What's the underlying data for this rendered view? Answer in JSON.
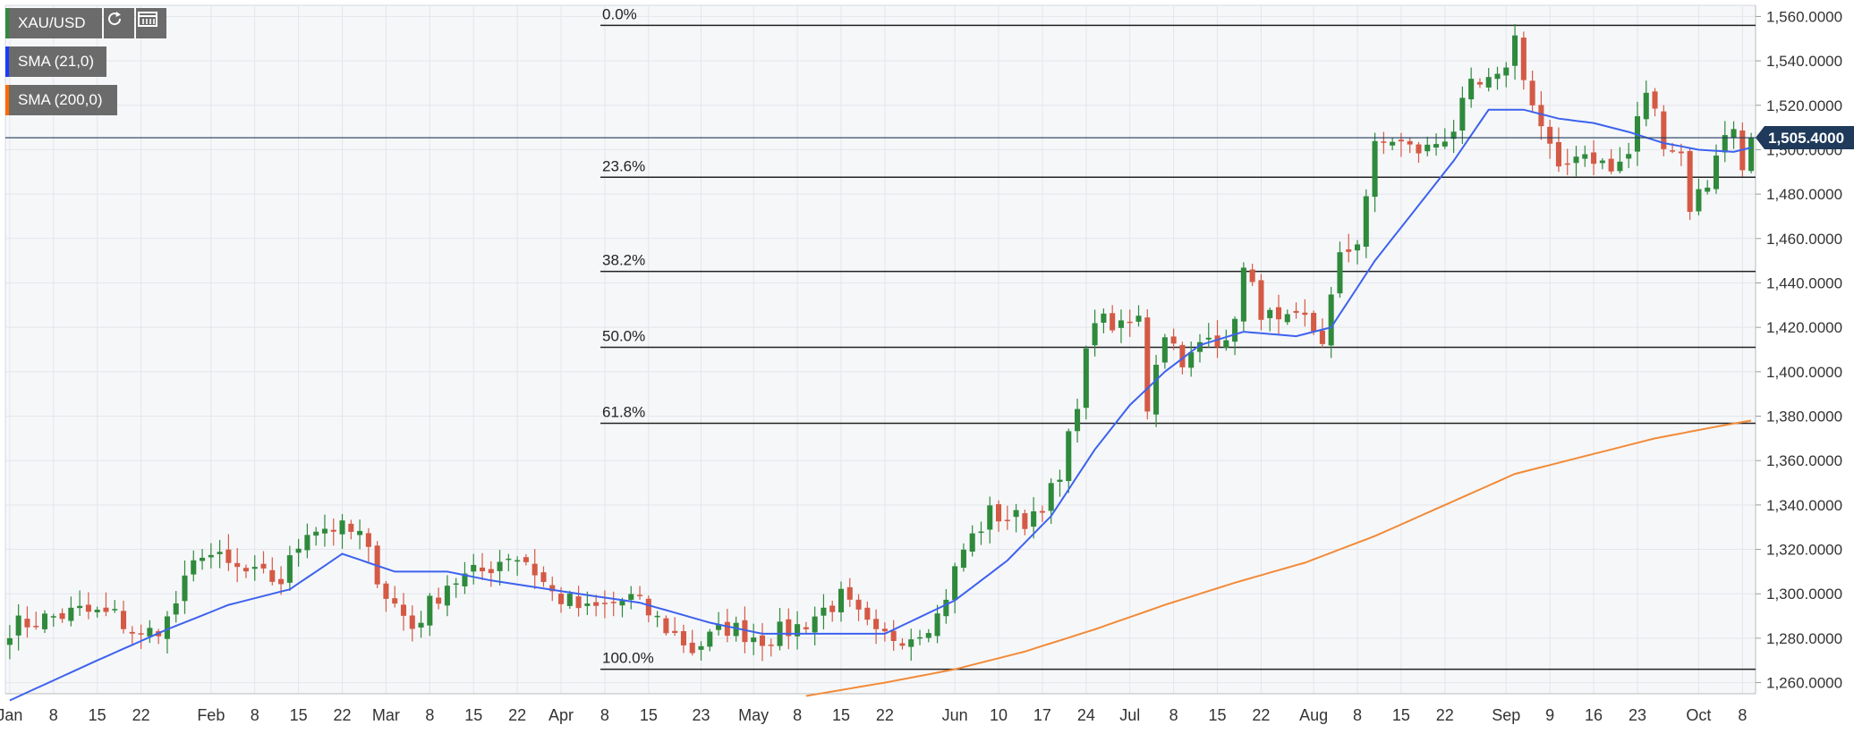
{
  "symbol": "XAU/USD",
  "indicators": [
    {
      "label": "SMA (21,0)",
      "color": "#1a3cff"
    },
    {
      "label": "SMA (200,0)",
      "color": "#ff6a00"
    }
  ],
  "toolbar_icons": [
    "refresh-icon",
    "calendar-range-icon"
  ],
  "colors": {
    "up": "#2f8a3c",
    "down": "#d45a45",
    "sma21": "#3d62ee",
    "sma200": "#f28a37",
    "grid": "#e4e6ec",
    "fib": "#222222",
    "price_tag": "#1f3a5a"
  },
  "chart_data": {
    "type": "candlestick",
    "title": "",
    "ylim": [
      1255,
      1565
    ],
    "y_ticks": [
      "1,260.0000",
      "1,280.0000",
      "1,300.0000",
      "1,320.0000",
      "1,340.0000",
      "1,360.0000",
      "1,380.0000",
      "1,400.0000",
      "1,420.0000",
      "1,440.0000",
      "1,460.0000",
      "1,480.0000",
      "1,500.0000",
      "1,520.0000",
      "1,540.0000",
      "1,560.0000"
    ],
    "x_ticks": [
      "Jan",
      "8",
      "15",
      "22",
      "Feb",
      "8",
      "15",
      "22",
      "Mar",
      "8",
      "15",
      "22",
      "Apr",
      "8",
      "15",
      "23",
      "May",
      "8",
      "15",
      "22",
      "Jun",
      "10",
      "17",
      "24",
      "Jul",
      "8",
      "15",
      "22",
      "Aug",
      "8",
      "15",
      "22",
      "Sep",
      "9",
      "16",
      "23",
      "Oct",
      "8"
    ],
    "x_tick_index": [
      0,
      5,
      10,
      15,
      23,
      28,
      33,
      38,
      43,
      48,
      53,
      58,
      63,
      68,
      73,
      79,
      85,
      90,
      95,
      100,
      108,
      113,
      118,
      123,
      128,
      133,
      138,
      143,
      149,
      154,
      159,
      164,
      171,
      176,
      181,
      186,
      193,
      198
    ],
    "n_bars": 200,
    "last_price": "1,505.4000",
    "last_value": 1505.4,
    "fib_start_index": 68,
    "fibonacci": [
      {
        "label": "0.0%",
        "value": 1556
      },
      {
        "label": "23.6%",
        "value": 1487.6
      },
      {
        "label": "38.2%",
        "value": 1445.2
      },
      {
        "label": "50.0%",
        "value": 1411
      },
      {
        "label": "61.8%",
        "value": 1376.8
      },
      {
        "label": "100.0%",
        "value": 1266
      }
    ],
    "close_anchors": [
      [
        0,
        1285
      ],
      [
        3,
        1288
      ],
      [
        8,
        1292
      ],
      [
        12,
        1290
      ],
      [
        15,
        1280
      ],
      [
        18,
        1288
      ],
      [
        22,
        1320
      ],
      [
        25,
        1312
      ],
      [
        28,
        1308
      ],
      [
        31,
        1306
      ],
      [
        34,
        1330
      ],
      [
        37,
        1330
      ],
      [
        40,
        1326
      ],
      [
        43,
        1300
      ],
      [
        46,
        1285
      ],
      [
        50,
        1305
      ],
      [
        54,
        1310
      ],
      [
        57,
        1318
      ],
      [
        59,
        1315
      ],
      [
        62,
        1300
      ],
      [
        66,
        1292
      ],
      [
        71,
        1298
      ],
      [
        74,
        1288
      ],
      [
        78,
        1275
      ],
      [
        82,
        1285
      ],
      [
        86,
        1280
      ],
      [
        90,
        1285
      ],
      [
        95,
        1298
      ],
      [
        99,
        1280
      ],
      [
        103,
        1282
      ],
      [
        106,
        1290
      ],
      [
        109,
        1320
      ],
      [
        112,
        1336
      ],
      [
        116,
        1333
      ],
      [
        120,
        1350
      ],
      [
        122,
        1388
      ],
      [
        124,
        1425
      ],
      [
        126,
        1418
      ],
      [
        129,
        1428
      ],
      [
        130,
        1385
      ],
      [
        132,
        1420
      ],
      [
        134,
        1400
      ],
      [
        137,
        1420
      ],
      [
        139,
        1410
      ],
      [
        141,
        1445
      ],
      [
        143,
        1428
      ],
      [
        145,
        1420
      ],
      [
        148,
        1423
      ],
      [
        150,
        1415
      ],
      [
        152,
        1450
      ],
      [
        154,
        1460
      ],
      [
        156,
        1500
      ],
      [
        158,
        1505
      ],
      [
        160,
        1500
      ],
      [
        162,
        1500
      ],
      [
        165,
        1510
      ],
      [
        167,
        1527
      ],
      [
        170,
        1530
      ],
      [
        172,
        1550
      ],
      [
        174,
        1520
      ],
      [
        176,
        1500
      ],
      [
        177,
        1488
      ],
      [
        179,
        1500
      ],
      [
        181,
        1497
      ],
      [
        183,
        1490
      ],
      [
        185,
        1498
      ],
      [
        187,
        1527
      ],
      [
        189,
        1505
      ],
      [
        191,
        1498
      ],
      [
        192,
        1475
      ],
      [
        194,
        1485
      ],
      [
        195,
        1500
      ],
      [
        197,
        1510
      ],
      [
        198,
        1495
      ],
      [
        199,
        1505
      ]
    ],
    "sma21_anchors": [
      [
        0,
        1252
      ],
      [
        10,
        1270
      ],
      [
        18,
        1284
      ],
      [
        25,
        1295
      ],
      [
        32,
        1302
      ],
      [
        38,
        1318
      ],
      [
        44,
        1310
      ],
      [
        50,
        1310
      ],
      [
        55,
        1306
      ],
      [
        60,
        1303
      ],
      [
        65,
        1300
      ],
      [
        72,
        1296
      ],
      [
        80,
        1287
      ],
      [
        86,
        1282
      ],
      [
        92,
        1282
      ],
      [
        100,
        1282
      ],
      [
        108,
        1297
      ],
      [
        114,
        1315
      ],
      [
        119,
        1335
      ],
      [
        124,
        1365
      ],
      [
        128,
        1385
      ],
      [
        132,
        1400
      ],
      [
        136,
        1412
      ],
      [
        141,
        1418
      ],
      [
        147,
        1416
      ],
      [
        151,
        1420
      ],
      [
        156,
        1450
      ],
      [
        161,
        1475
      ],
      [
        165,
        1495
      ],
      [
        169,
        1518
      ],
      [
        173,
        1518
      ],
      [
        177,
        1514
      ],
      [
        181,
        1512
      ],
      [
        185,
        1508
      ],
      [
        189,
        1503
      ],
      [
        193,
        1500
      ],
      [
        197,
        1499
      ],
      [
        199,
        1501
      ]
    ],
    "sma200_anchors": [
      [
        91,
        1254
      ],
      [
        100,
        1260
      ],
      [
        108,
        1266
      ],
      [
        116,
        1274
      ],
      [
        124,
        1284
      ],
      [
        132,
        1295
      ],
      [
        140,
        1305
      ],
      [
        148,
        1314
      ],
      [
        156,
        1326
      ],
      [
        164,
        1340
      ],
      [
        172,
        1354
      ],
      [
        180,
        1362
      ],
      [
        188,
        1370
      ],
      [
        196,
        1376
      ],
      [
        199,
        1378
      ]
    ]
  }
}
